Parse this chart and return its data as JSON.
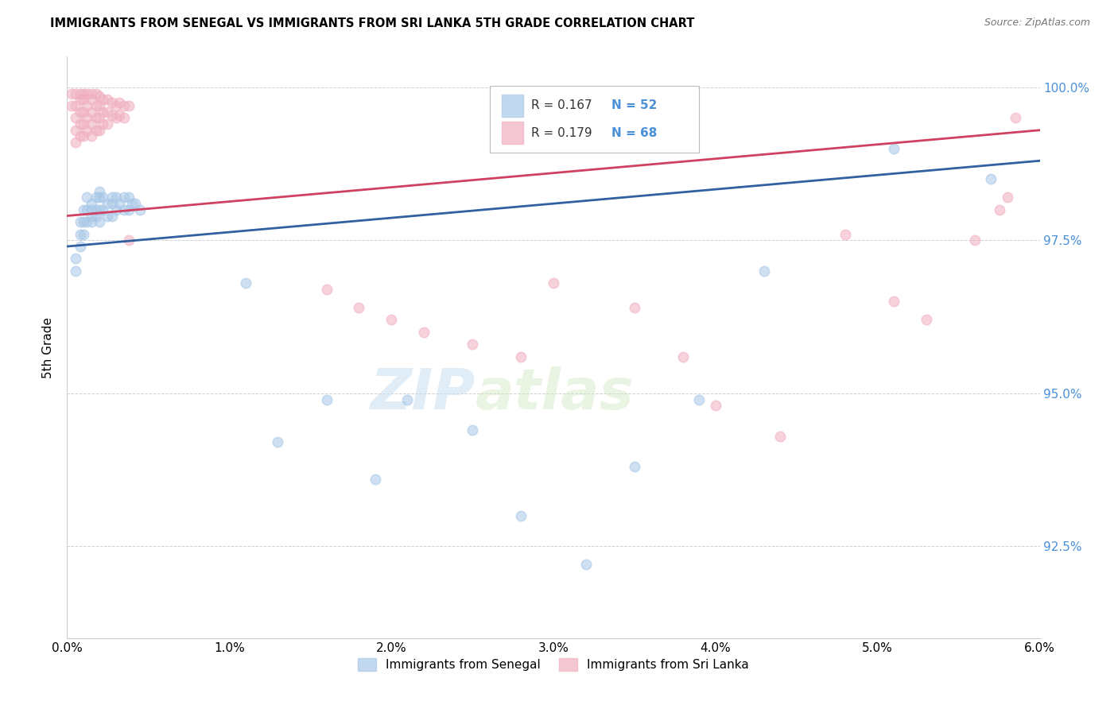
{
  "title": "IMMIGRANTS FROM SENEGAL VS IMMIGRANTS FROM SRI LANKA 5TH GRADE CORRELATION CHART",
  "source": "Source: ZipAtlas.com",
  "xlabel_blue": "Immigrants from Senegal",
  "xlabel_pink": "Immigrants from Sri Lanka",
  "ylabel": "5th Grade",
  "xlim": [
    0.0,
    0.06
  ],
  "ylim": [
    0.91,
    1.005
  ],
  "xticks": [
    0.0,
    0.01,
    0.02,
    0.03,
    0.04,
    0.05,
    0.06
  ],
  "xticklabels": [
    "0.0%",
    "1.0%",
    "2.0%",
    "3.0%",
    "4.0%",
    "5.0%",
    "6.0%"
  ],
  "yticks": [
    0.925,
    0.95,
    0.975,
    1.0
  ],
  "yticklabels": [
    "92.5%",
    "95.0%",
    "97.5%",
    "100.0%"
  ],
  "legend_blue_r": "R = 0.167",
  "legend_blue_n": "N = 52",
  "legend_pink_r": "R = 0.179",
  "legend_pink_n": "N = 68",
  "watermark_zip": "ZIP",
  "watermark_atlas": "atlas",
  "blue_color": "#a8c8e8",
  "pink_color": "#f0b0c0",
  "blue_line_color": "#3060a0",
  "pink_line_color": "#d04060",
  "scatter_size": 80,
  "blue_x": [
    0.0005,
    0.0005,
    0.0008,
    0.0008,
    0.0008,
    0.001,
    0.001,
    0.001,
    0.0012,
    0.0012,
    0.0012,
    0.0015,
    0.0015,
    0.0015,
    0.0015,
    0.0018,
    0.0018,
    0.0018,
    0.002,
    0.002,
    0.002,
    0.002,
    0.0022,
    0.0022,
    0.0025,
    0.0025,
    0.0028,
    0.0028,
    0.0028,
    0.003,
    0.003,
    0.0032,
    0.0035,
    0.0035,
    0.0038,
    0.0038,
    0.004,
    0.0042,
    0.0045,
    0.011,
    0.013,
    0.016,
    0.019,
    0.021,
    0.025,
    0.028,
    0.032,
    0.035,
    0.039,
    0.043,
    0.051,
    0.057
  ],
  "blue_y": [
    0.972,
    0.97,
    0.978,
    0.976,
    0.974,
    0.98,
    0.978,
    0.976,
    0.982,
    0.98,
    0.978,
    0.981,
    0.98,
    0.979,
    0.978,
    0.982,
    0.98,
    0.979,
    0.983,
    0.982,
    0.98,
    0.978,
    0.982,
    0.98,
    0.981,
    0.979,
    0.982,
    0.981,
    0.979,
    0.982,
    0.98,
    0.981,
    0.982,
    0.98,
    0.982,
    0.98,
    0.981,
    0.981,
    0.98,
    0.968,
    0.942,
    0.949,
    0.936,
    0.949,
    0.944,
    0.93,
    0.922,
    0.938,
    0.949,
    0.97,
    0.99,
    0.985
  ],
  "pink_x": [
    0.0003,
    0.0003,
    0.0005,
    0.0005,
    0.0005,
    0.0005,
    0.0005,
    0.0008,
    0.0008,
    0.0008,
    0.0008,
    0.0008,
    0.001,
    0.001,
    0.001,
    0.001,
    0.001,
    0.0012,
    0.0012,
    0.0012,
    0.0012,
    0.0015,
    0.0015,
    0.0015,
    0.0015,
    0.0015,
    0.0018,
    0.0018,
    0.0018,
    0.0018,
    0.002,
    0.002,
    0.002,
    0.002,
    0.0022,
    0.0022,
    0.0022,
    0.0025,
    0.0025,
    0.0025,
    0.0028,
    0.0028,
    0.003,
    0.003,
    0.0032,
    0.0032,
    0.0035,
    0.0035,
    0.0038,
    0.0038,
    0.016,
    0.018,
    0.02,
    0.022,
    0.025,
    0.028,
    0.03,
    0.035,
    0.038,
    0.04,
    0.044,
    0.048,
    0.051,
    0.053,
    0.056,
    0.0575,
    0.058,
    0.0585
  ],
  "pink_y": [
    0.999,
    0.997,
    0.999,
    0.997,
    0.995,
    0.993,
    0.991,
    0.999,
    0.998,
    0.996,
    0.994,
    0.992,
    0.999,
    0.998,
    0.996,
    0.994,
    0.992,
    0.999,
    0.997,
    0.995,
    0.993,
    0.999,
    0.998,
    0.996,
    0.994,
    0.992,
    0.999,
    0.997,
    0.995,
    0.993,
    0.9985,
    0.997,
    0.995,
    0.993,
    0.998,
    0.996,
    0.994,
    0.998,
    0.996,
    0.994,
    0.9975,
    0.9955,
    0.997,
    0.995,
    0.9975,
    0.9955,
    0.997,
    0.995,
    0.997,
    0.975,
    0.967,
    0.964,
    0.962,
    0.96,
    0.958,
    0.956,
    0.968,
    0.964,
    0.956,
    0.948,
    0.943,
    0.976,
    0.965,
    0.962,
    0.975,
    0.98,
    0.982,
    0.995
  ]
}
